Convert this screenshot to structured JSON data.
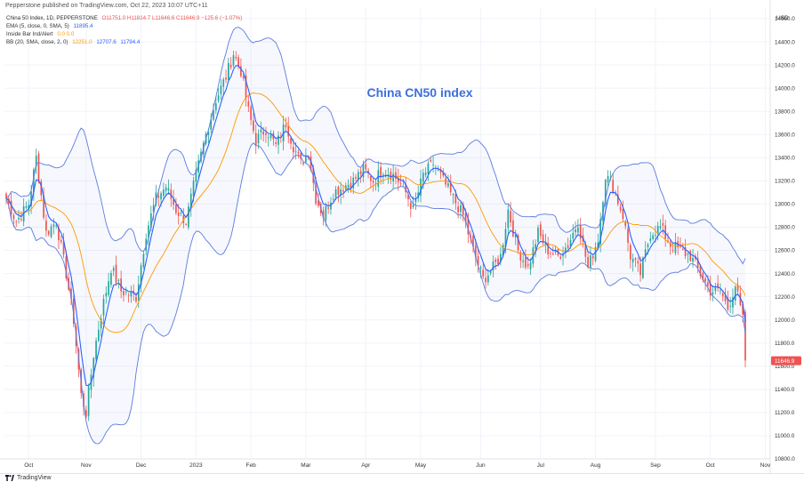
{
  "header": {
    "published": "Pepperstone published on TradingView.com, Oct 22, 2023 10:07 UTC+11"
  },
  "legend": {
    "symbol_line": {
      "name": "China 50 Index, 1D, PEPPERSTONE",
      "ohlc": "O11751.0  H11814.7  L11646.6  C11646.9  −125.6 (−1.07%)"
    },
    "ema_line": {
      "name": "EMA (5, close, 0, SMA, 5)",
      "value": "11895.4"
    },
    "inside_bar_line": {
      "name": "Inside Bar Ind/Alert",
      "value": "0.0  0.0"
    },
    "bb_line": {
      "name": "BB (20, SMA, close, 2, 0)",
      "v1": "12251.0",
      "v2": "12707.6",
      "v3": "11794.4"
    }
  },
  "annotation": "China CN50 index",
  "footer": {
    "brand": "TradingView"
  },
  "colors": {
    "up": "#26a69a",
    "down": "#ef5350",
    "ema": "#2962ff",
    "bb_band": "#5b7be0",
    "bb_mid": "#ff9800",
    "annotation": "#3c6fdc",
    "price_tag": "#ef5350"
  },
  "chart_data": {
    "type": "candlestick",
    "currency": "USD",
    "last_price_label": "11646.9",
    "ylim": [
      10800,
      14700
    ],
    "y_ticks": [
      "14600.0",
      "14400.0",
      "14200.0",
      "14000.0",
      "13800.0",
      "13600.0",
      "13400.0",
      "13200.0",
      "13000.0",
      "12800.0",
      "12600.0",
      "12400.0",
      "12200.0",
      "12000.0",
      "11800.0",
      "11600.0",
      "11400.0",
      "11200.0",
      "11000.0",
      "10800.0"
    ],
    "x_ticks": [
      {
        "label": "Oct",
        "index": 9
      },
      {
        "label": "Nov",
        "index": 32
      },
      {
        "label": "Dec",
        "index": 54
      },
      {
        "label": "2023",
        "index": 76
      },
      {
        "label": "Feb",
        "index": 98
      },
      {
        "label": "Mar",
        "index": 120
      },
      {
        "label": "Apr",
        "index": 144
      },
      {
        "label": "May",
        "index": 166
      },
      {
        "label": "Jun",
        "index": 190
      },
      {
        "label": "Jul",
        "index": 214
      },
      {
        "label": "Aug",
        "index": 236
      },
      {
        "label": "Sep",
        "index": 260
      },
      {
        "label": "Oct",
        "index": 282
      },
      {
        "label": "Nov",
        "index": 304
      }
    ],
    "anchors": [
      [
        0,
        13050
      ],
      [
        4,
        12850
      ],
      [
        9,
        13000
      ],
      [
        12,
        13400
      ],
      [
        16,
        12750
      ],
      [
        20,
        12850
      ],
      [
        24,
        12400
      ],
      [
        27,
        12000
      ],
      [
        30,
        11350
      ],
      [
        32,
        11200
      ],
      [
        35,
        11700
      ],
      [
        38,
        12050
      ],
      [
        42,
        12450
      ],
      [
        46,
        12250
      ],
      [
        52,
        12200
      ],
      [
        56,
        12750
      ],
      [
        60,
        13050
      ],
      [
        64,
        13150
      ],
      [
        68,
        12950
      ],
      [
        72,
        12850
      ],
      [
        76,
        13250
      ],
      [
        80,
        13600
      ],
      [
        84,
        13900
      ],
      [
        88,
        14100
      ],
      [
        91,
        14300
      ],
      [
        94,
        14150
      ],
      [
        97,
        13800
      ],
      [
        100,
        13550
      ],
      [
        104,
        13650
      ],
      [
        108,
        13500
      ],
      [
        112,
        13700
      ],
      [
        115,
        13500
      ],
      [
        118,
        13350
      ],
      [
        121,
        13450
      ],
      [
        124,
        13050
      ],
      [
        127,
        12900
      ],
      [
        131,
        13100
      ],
      [
        135,
        13150
      ],
      [
        139,
        13200
      ],
      [
        143,
        13300
      ],
      [
        147,
        13200
      ],
      [
        151,
        13300
      ],
      [
        155,
        13250
      ],
      [
        159,
        13150
      ],
      [
        163,
        12950
      ],
      [
        167,
        13250
      ],
      [
        171,
        13350
      ],
      [
        175,
        13200
      ],
      [
        179,
        13050
      ],
      [
        183,
        12900
      ],
      [
        187,
        12600
      ],
      [
        191,
        12350
      ],
      [
        195,
        12450
      ],
      [
        198,
        12550
      ],
      [
        201,
        12950
      ],
      [
        205,
        12600
      ],
      [
        209,
        12450
      ],
      [
        213,
        12750
      ],
      [
        217,
        12600
      ],
      [
        221,
        12550
      ],
      [
        225,
        12650
      ],
      [
        229,
        12850
      ],
      [
        233,
        12450
      ],
      [
        237,
        12700
      ],
      [
        240,
        13250
      ],
      [
        243,
        13150
      ],
      [
        247,
        12900
      ],
      [
        250,
        12550
      ],
      [
        254,
        12400
      ],
      [
        258,
        12750
      ],
      [
        262,
        12800
      ],
      [
        266,
        12650
      ],
      [
        270,
        12600
      ],
      [
        274,
        12550
      ],
      [
        278,
        12400
      ],
      [
        282,
        12250
      ],
      [
        286,
        12250
      ],
      [
        289,
        12100
      ],
      [
        292,
        12300
      ],
      [
        295,
        12000
      ],
      [
        296,
        11650
      ]
    ],
    "ema": {
      "name": "EMA (5, close, 0, SMA, 5)",
      "period": 5
    },
    "bollinger": {
      "name": "BB (20, SMA, close, 2, 0)",
      "period": 20,
      "mult": 2
    }
  }
}
